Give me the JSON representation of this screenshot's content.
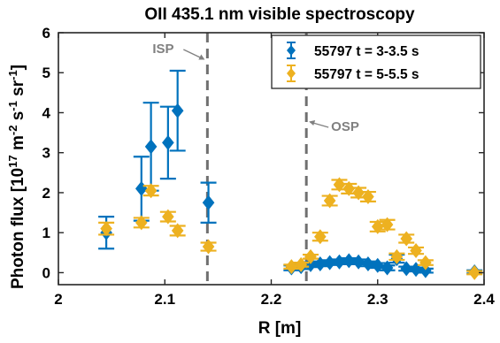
{
  "chart_data": {
    "type": "scatter",
    "title": "OII 435.1 nm visible spectroscopy",
    "xlabel": "R [m]",
    "ylabel": "Photon flux [10^17 m^-2 s^-1 sr^-1]",
    "xlim": [
      2,
      2.4
    ],
    "ylim": [
      -0.3,
      6
    ],
    "xticks": [
      "2",
      "2.1",
      "2.2",
      "2.3",
      "2.4"
    ],
    "yticks": [
      "0",
      "1",
      "2",
      "3",
      "4",
      "5",
      "6"
    ],
    "grid": false,
    "legend_position": "top-right",
    "series": [
      {
        "name": "55797 t = 3-3.5 s",
        "color": "#0072BD",
        "points": [
          {
            "x": 2.045,
            "y": 1.0,
            "err": 0.4
          },
          {
            "x": 2.078,
            "y": 2.1,
            "err": 0.8
          },
          {
            "x": 2.087,
            "y": 3.15,
            "err": 1.1
          },
          {
            "x": 2.103,
            "y": 3.25,
            "err": 0.9
          },
          {
            "x": 2.112,
            "y": 4.05,
            "err": 1.0
          },
          {
            "x": 2.141,
            "y": 1.75,
            "err": 0.5
          },
          {
            "x": 2.219,
            "y": 0.12,
            "err": 0.06
          },
          {
            "x": 2.228,
            "y": 0.15,
            "err": 0.06
          },
          {
            "x": 2.237,
            "y": 0.2,
            "err": 0.06
          },
          {
            "x": 2.246,
            "y": 0.22,
            "err": 0.06
          },
          {
            "x": 2.255,
            "y": 0.25,
            "err": 0.06
          },
          {
            "x": 2.264,
            "y": 0.27,
            "err": 0.06
          },
          {
            "x": 2.273,
            "y": 0.3,
            "err": 0.06
          },
          {
            "x": 2.282,
            "y": 0.27,
            "err": 0.06
          },
          {
            "x": 2.291,
            "y": 0.22,
            "err": 0.06
          },
          {
            "x": 2.3,
            "y": 0.18,
            "err": 0.06
          },
          {
            "x": 2.309,
            "y": 0.12,
            "err": 0.06
          },
          {
            "x": 2.318,
            "y": 0.35,
            "err": 0.1
          },
          {
            "x": 2.327,
            "y": 0.1,
            "err": 0.05
          },
          {
            "x": 2.336,
            "y": 0.08,
            "err": 0.05
          },
          {
            "x": 2.345,
            "y": 0.05,
            "err": 0.05
          },
          {
            "x": 2.391,
            "y": 0.02,
            "err": 0.04
          }
        ]
      },
      {
        "name": "55797 t = 5-5.5 s",
        "color": "#EDB120",
        "points": [
          {
            "x": 2.045,
            "y": 1.1,
            "err": 0.15
          },
          {
            "x": 2.078,
            "y": 1.25,
            "err": 0.12
          },
          {
            "x": 2.087,
            "y": 2.05,
            "err": 0.12
          },
          {
            "x": 2.103,
            "y": 1.4,
            "err": 0.12
          },
          {
            "x": 2.112,
            "y": 1.05,
            "err": 0.12
          },
          {
            "x": 2.141,
            "y": 0.65,
            "err": 0.1
          },
          {
            "x": 2.219,
            "y": 0.15,
            "err": 0.05
          },
          {
            "x": 2.228,
            "y": 0.2,
            "err": 0.05
          },
          {
            "x": 2.237,
            "y": 0.4,
            "err": 0.05
          },
          {
            "x": 2.246,
            "y": 0.9,
            "err": 0.1
          },
          {
            "x": 2.255,
            "y": 1.8,
            "err": 0.12
          },
          {
            "x": 2.264,
            "y": 2.2,
            "err": 0.12
          },
          {
            "x": 2.273,
            "y": 2.1,
            "err": 0.12
          },
          {
            "x": 2.282,
            "y": 2.0,
            "err": 0.12
          },
          {
            "x": 2.291,
            "y": 1.9,
            "err": 0.12
          },
          {
            "x": 2.3,
            "y": 1.15,
            "err": 0.12
          },
          {
            "x": 2.309,
            "y": 1.2,
            "err": 0.12
          },
          {
            "x": 2.318,
            "y": 0.4,
            "err": 0.08
          },
          {
            "x": 2.327,
            "y": 0.85,
            "err": 0.1
          },
          {
            "x": 2.336,
            "y": 0.55,
            "err": 0.08
          },
          {
            "x": 2.345,
            "y": 0.25,
            "err": 0.06
          },
          {
            "x": 2.391,
            "y": 0.0,
            "err": 0.04
          }
        ]
      }
    ],
    "annotations": [
      {
        "text": "ISP",
        "x": 2.14,
        "line_style": "dashed",
        "color": "#707070"
      },
      {
        "text": "OSP",
        "x": 2.233,
        "line_style": "dashed",
        "color": "#707070"
      }
    ]
  }
}
